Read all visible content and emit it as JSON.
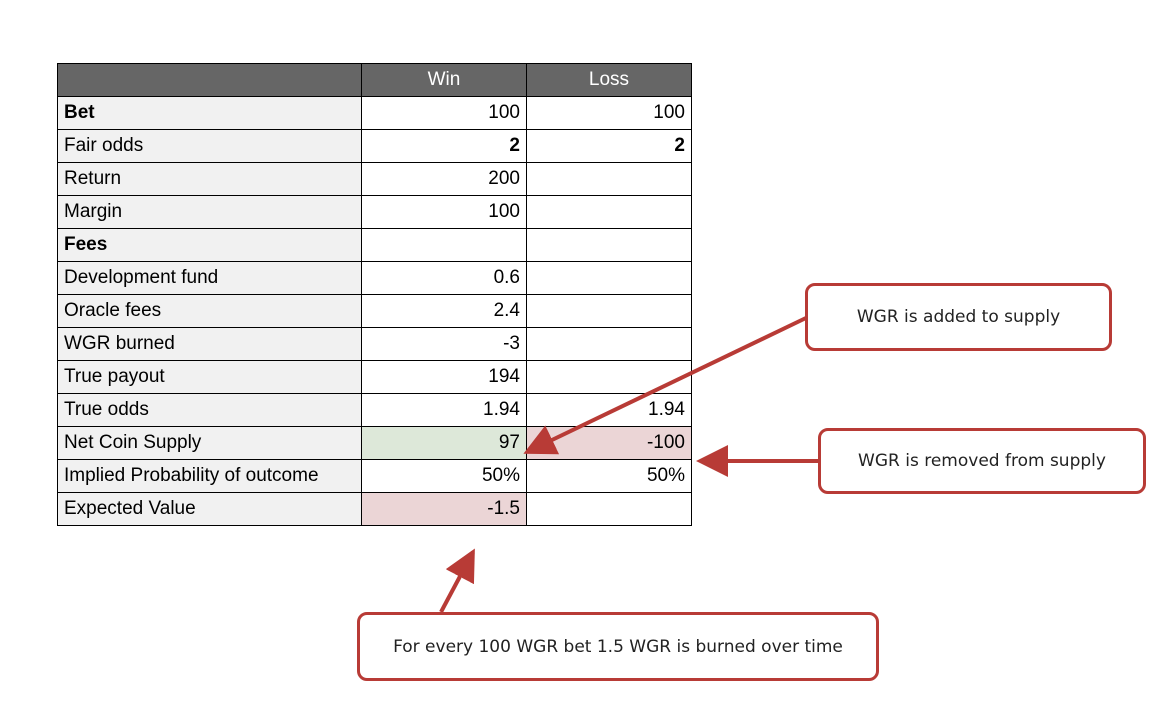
{
  "table": {
    "headers": [
      "",
      "Win",
      "Loss"
    ],
    "rows": [
      {
        "label": "Bet",
        "win": "100",
        "loss": "100"
      },
      {
        "label": "Fair odds",
        "win": "2",
        "loss": "2"
      },
      {
        "label": "Return",
        "win": "200",
        "loss": ""
      },
      {
        "label": "Margin",
        "win": "100",
        "loss": ""
      },
      {
        "label": "Fees",
        "win": "",
        "loss": ""
      },
      {
        "label": "Development fund",
        "win": "0.6",
        "loss": ""
      },
      {
        "label": "Oracle fees",
        "win": "2.4",
        "loss": ""
      },
      {
        "label": "WGR burned",
        "win": "-3",
        "loss": ""
      },
      {
        "label": "True payout",
        "win": "194",
        "loss": ""
      },
      {
        "label": "True odds",
        "win": "1.94",
        "loss": "1.94"
      },
      {
        "label": "Net Coin Supply",
        "win": "97",
        "loss": "-100"
      },
      {
        "label": "Implied Probability of outcome",
        "win": "50%",
        "loss": "50%"
      },
      {
        "label": "Expected Value",
        "win": "-1.5",
        "loss": ""
      }
    ],
    "colors": {
      "header_bg": "#666666",
      "label_bg": "#f1f1f1",
      "positive_highlight": "#dde8d9",
      "negative_highlight": "#ebd5d6"
    }
  },
  "callouts": {
    "added": "WGR is added to supply",
    "removed": "WGR is removed from supply",
    "burned": "For every 100 WGR bet 1.5 WGR is burned over time",
    "accent_color": "#b83b36"
  }
}
